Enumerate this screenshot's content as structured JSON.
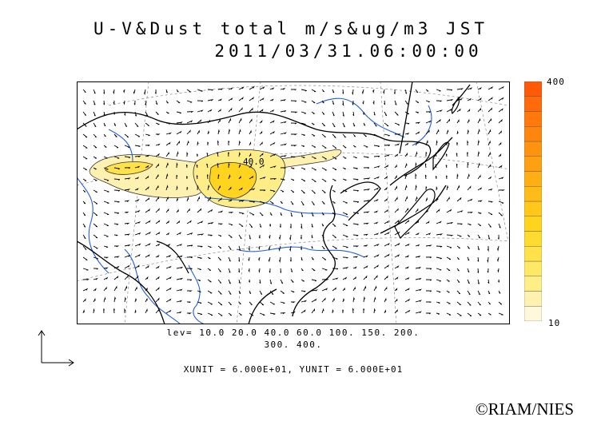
{
  "title": {
    "line1": "U-V&Dust total m/s&ug/m3 JST",
    "line2": "2011/03/31.06:00:00"
  },
  "map": {
    "contour_label": "40.0",
    "colors": {
      "land_border": "#000000",
      "rivers": "#1f5fe0",
      "grid_lines": "#777777",
      "wind_arrows": "#000000",
      "dust_contour": "#000000"
    }
  },
  "colorbar": {
    "max_label": "400",
    "min_label": "10",
    "colors": [
      "#fff8dc",
      "#fff2b0",
      "#ffee88",
      "#ffe866",
      "#ffe24a",
      "#ffdb30",
      "#ffd41f",
      "#ffc81a",
      "#ffbb17",
      "#ffae14",
      "#ffa012",
      "#ff9310",
      "#ff860e",
      "#ff790c",
      "#ff6a0a",
      "#ff5a08"
    ]
  },
  "levels": {
    "line1": "lev= 10.0 20.0 40.0 60.0 100. 150. 200.",
    "line2": "300. 400."
  },
  "units": "XUNIT = 6.000E+01, YUNIT = 6.000E+01",
  "copyright": "©RIAM/NIES"
}
